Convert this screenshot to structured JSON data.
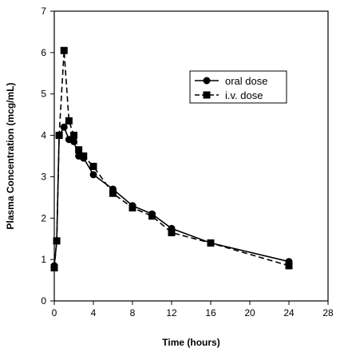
{
  "chart_data": {
    "type": "line",
    "title": "",
    "xlabel": "Time (hours)",
    "ylabel": "Plasma Concentration (mcg/mL)",
    "xlim": [
      0,
      28
    ],
    "ylim": [
      0,
      7
    ],
    "x_ticks": [
      0,
      4,
      8,
      12,
      16,
      20,
      24,
      28
    ],
    "y_ticks": [
      0,
      1,
      2,
      3,
      4,
      5,
      6,
      7
    ],
    "grid": false,
    "legend_position": "top-right",
    "series": [
      {
        "name": "oral dose",
        "marker": "circle",
        "line_style": "solid",
        "color": "#000000",
        "x": [
          0,
          0.25,
          0.5,
          1,
          1.5,
          2,
          2.5,
          3,
          4,
          6,
          8,
          10,
          12,
          16,
          24
        ],
        "y": [
          0.85,
          1.45,
          4.0,
          4.2,
          3.9,
          3.85,
          3.5,
          3.45,
          3.05,
          2.7,
          2.3,
          2.1,
          1.75,
          1.4,
          0.95
        ]
      },
      {
        "name": "i.v. dose",
        "marker": "square",
        "line_style": "dashed",
        "color": "#000000",
        "x": [
          0,
          0.25,
          0.5,
          1,
          1.5,
          2,
          2.5,
          3,
          4,
          6,
          8,
          10,
          12,
          16,
          24
        ],
        "y": [
          0.8,
          1.45,
          4.0,
          6.05,
          4.35,
          4.0,
          3.65,
          3.5,
          3.25,
          2.6,
          2.25,
          2.05,
          1.65,
          1.4,
          0.85
        ]
      }
    ]
  }
}
